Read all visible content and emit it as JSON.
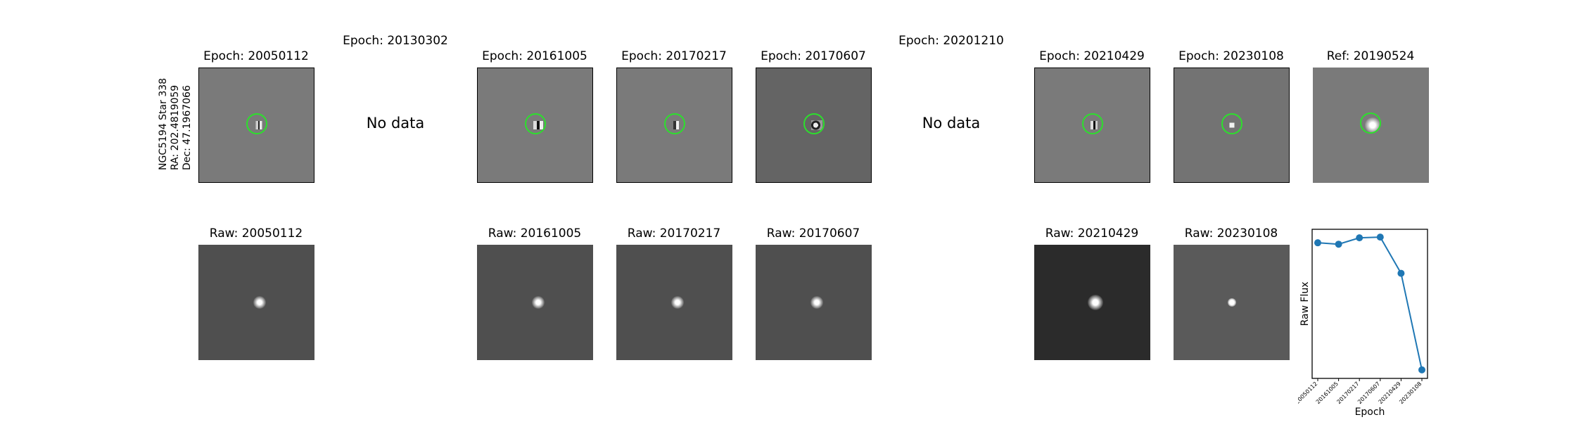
{
  "row_label": {
    "line1": "NGC5194 Star 338",
    "line2": "RA: 202.4819059",
    "line3": "Dec: 47.1967066"
  },
  "diff_row": {
    "titles": [
      "Epoch: 20050112",
      "Epoch: 20130302",
      "Epoch: 20161005",
      "Epoch: 20170217",
      "Epoch: 20170607",
      "Epoch: 20201210",
      "Epoch: 20210429",
      "Epoch: 20230108",
      "Ref: 20190524"
    ],
    "no_data_label": "No data"
  },
  "raw_row": {
    "titles": [
      "Raw: 20050112",
      "Raw: 20161005",
      "Raw: 20170217",
      "Raw: 20170607",
      "Raw: 20210429",
      "Raw: 20230108"
    ]
  },
  "colors": {
    "ring": "#2ce02c",
    "line": "#1f77b4",
    "diff_bg": "#7a7a7a",
    "diff_bg_dark": "#646464",
    "raw_bg": "#4f4f4f",
    "raw_bg_dark": "#2b2b2b",
    "raw_bg_light": "#5a5a5a"
  },
  "chart_data": {
    "type": "line",
    "ylabel": "Raw Flux",
    "xlabel": "Epoch",
    "categories": [
      "20050112",
      "20161005",
      "20170217",
      "20170607",
      "20210429",
      "20230108"
    ],
    "values": [
      0.955,
      0.945,
      0.99,
      0.995,
      0.74,
      0.06
    ],
    "ylim": [
      0,
      1.05
    ],
    "y_ticks_visible": false,
    "grid": false
  }
}
